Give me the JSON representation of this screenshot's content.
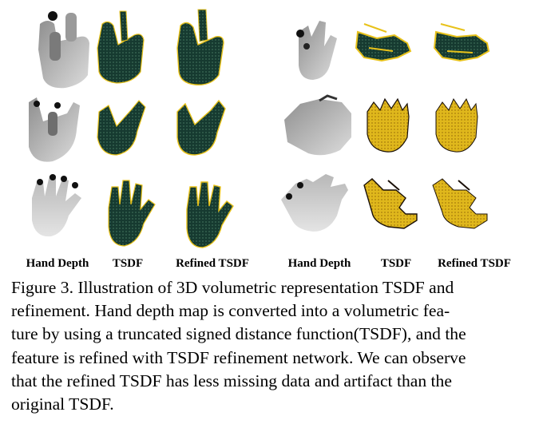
{
  "figure": {
    "column_labels": [
      "Hand Depth",
      "TSDF",
      "Refined TSDF",
      "Hand Depth",
      "TSDF",
      "Refined TSDF"
    ],
    "caption_lines": [
      "Figure 3. Illustration of 3D volumetric representation TSDF and",
      "refinement. Hand depth map is converted into a volumetric fea-",
      "ture by using a truncated signed distance function(TSDF), and the",
      "feature is refined with TSDF refinement network. We can observe",
      "that the refined TSDF has less missing data and artifact than the",
      "original TSDF."
    ]
  },
  "colors": {
    "depth_dark": "#2a2a2a",
    "depth_light": "#d8d8d8",
    "tsdf_dark": "#14332c",
    "tsdf_yellow": "#e8c21a",
    "tsdf_edge": "#1a1008"
  }
}
